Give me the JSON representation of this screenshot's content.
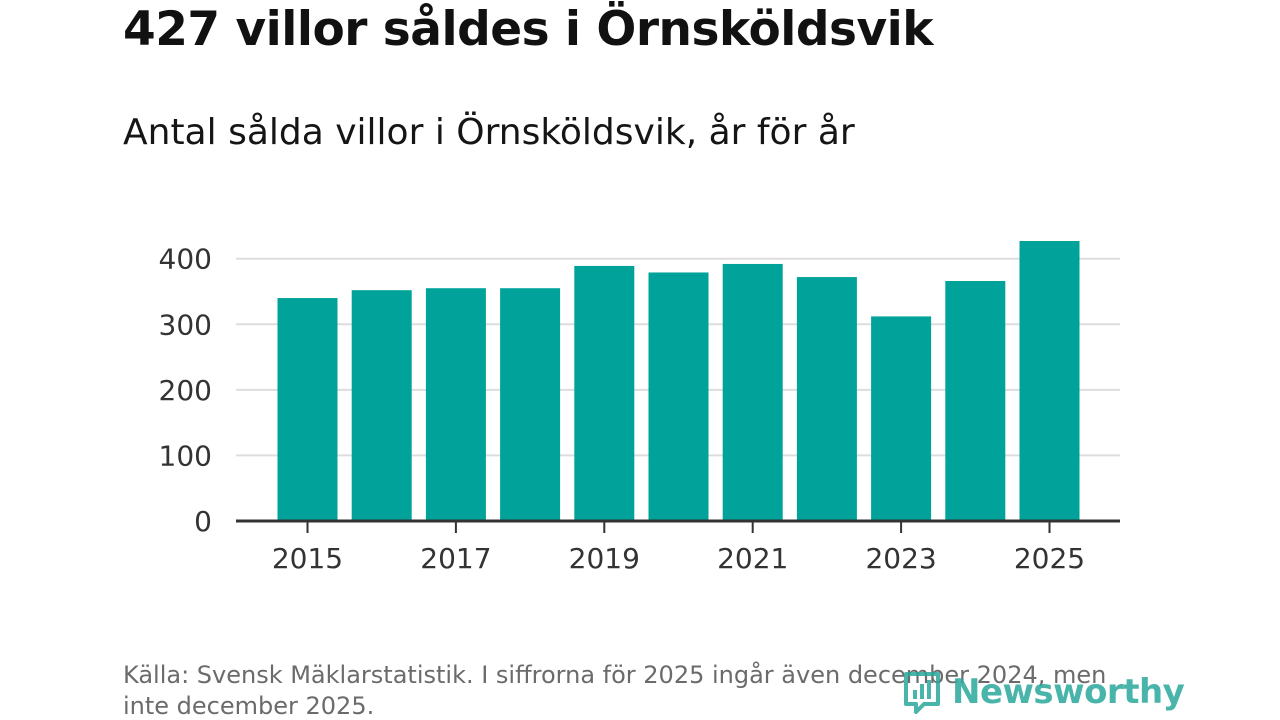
{
  "header": {
    "title": "427 villor såldes i Örnsköldsvik",
    "subtitle": "Antal sålda villor i Örnsköldsvik, år för år"
  },
  "footer": {
    "source": "Källa: Svensk Mäklarstatistik. I siffrorna för 2025 ingår även december 2024, men inte december 2025.",
    "brand": "Newsworthy",
    "brand_icon": "newsworthy-logo-icon"
  },
  "colors": {
    "bar": "#00a29a",
    "grid": "#dddddd",
    "axis": "#333333",
    "brand": "#2aa79b"
  },
  "chart_data": {
    "type": "bar",
    "title": "Antal sålda villor i Örnsköldsvik, år för år",
    "xlabel": "",
    "ylabel": "",
    "categories": [
      "2015",
      "2016",
      "2017",
      "2018",
      "2019",
      "2020",
      "2021",
      "2022",
      "2023",
      "2024",
      "2025"
    ],
    "values": [
      340,
      352,
      355,
      355,
      389,
      379,
      392,
      372,
      312,
      366,
      427
    ],
    "x_tick_labels": [
      "2015",
      "2017",
      "2019",
      "2021",
      "2023",
      "2025"
    ],
    "y_ticks": [
      0,
      100,
      200,
      300,
      400
    ],
    "ylim": [
      0,
      427
    ],
    "grid": true,
    "legend": "none"
  }
}
